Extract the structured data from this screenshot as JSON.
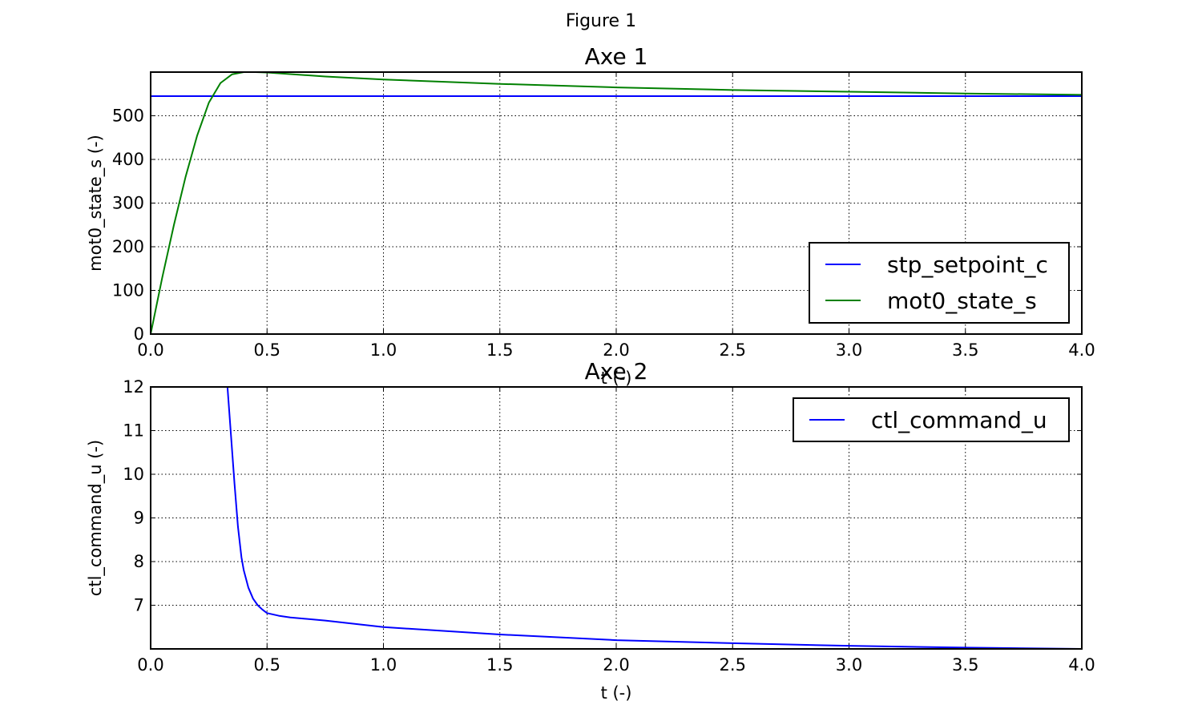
{
  "figure_title": "Figure 1",
  "chart_data": [
    {
      "type": "line",
      "title": "Axe 1",
      "xlabel": "t (-)",
      "ylabel": "mot0_state_s (-)",
      "xlim": [
        0,
        4
      ],
      "ylim": [
        0,
        600
      ],
      "xticks": [
        "0.0",
        "0.5",
        "1.0",
        "1.5",
        "2.0",
        "2.5",
        "3.0",
        "3.5",
        "4.0"
      ],
      "yticks": [
        "0",
        "100",
        "200",
        "300",
        "400",
        "500"
      ],
      "grid": true,
      "legend_position": "lower-right",
      "series": [
        {
          "name": "stp_setpoint_c",
          "color": "#0000ff",
          "x": [
            0,
            4.0
          ],
          "y": [
            545,
            545
          ]
        },
        {
          "name": "mot0_state_s",
          "color": "#008000",
          "x": [
            0,
            0.05,
            0.1,
            0.15,
            0.2,
            0.25,
            0.3,
            0.35,
            0.4,
            0.45,
            0.5,
            0.75,
            1.0,
            1.25,
            1.5,
            1.75,
            2.0,
            2.5,
            3.0,
            3.5,
            4.0
          ],
          "y": [
            0,
            130,
            250,
            360,
            455,
            530,
            575,
            595,
            600,
            600,
            599,
            590,
            583,
            578,
            573,
            569,
            565,
            559,
            555,
            551,
            548
          ]
        }
      ]
    },
    {
      "type": "line",
      "title": "Axe 2",
      "xlabel": "t (-)",
      "ylabel": "ctl_command_u (-)",
      "xlim": [
        0,
        4
      ],
      "ylim": [
        6,
        12
      ],
      "xticks": [
        "0.0",
        "0.5",
        "1.0",
        "1.5",
        "2.0",
        "2.5",
        "3.0",
        "3.5",
        "4.0"
      ],
      "yticks": [
        "7",
        "8",
        "9",
        "10",
        "11",
        "12"
      ],
      "grid": true,
      "legend_position": "upper-right",
      "series": [
        {
          "name": "ctl_command_u",
          "color": "#0000ff",
          "x": [
            0.33,
            0.345,
            0.36,
            0.375,
            0.39,
            0.4,
            0.42,
            0.44,
            0.46,
            0.48,
            0.5,
            0.55,
            0.6,
            0.75,
            1.0,
            1.5,
            2.0,
            2.5,
            3.0,
            3.5,
            4.0
          ],
          "y": [
            12,
            10.9,
            9.8,
            8.8,
            8.1,
            7.8,
            7.4,
            7.15,
            7.0,
            6.9,
            6.82,
            6.76,
            6.72,
            6.65,
            6.5,
            6.33,
            6.2,
            6.13,
            6.07,
            6.03,
            6.0
          ]
        }
      ]
    }
  ]
}
